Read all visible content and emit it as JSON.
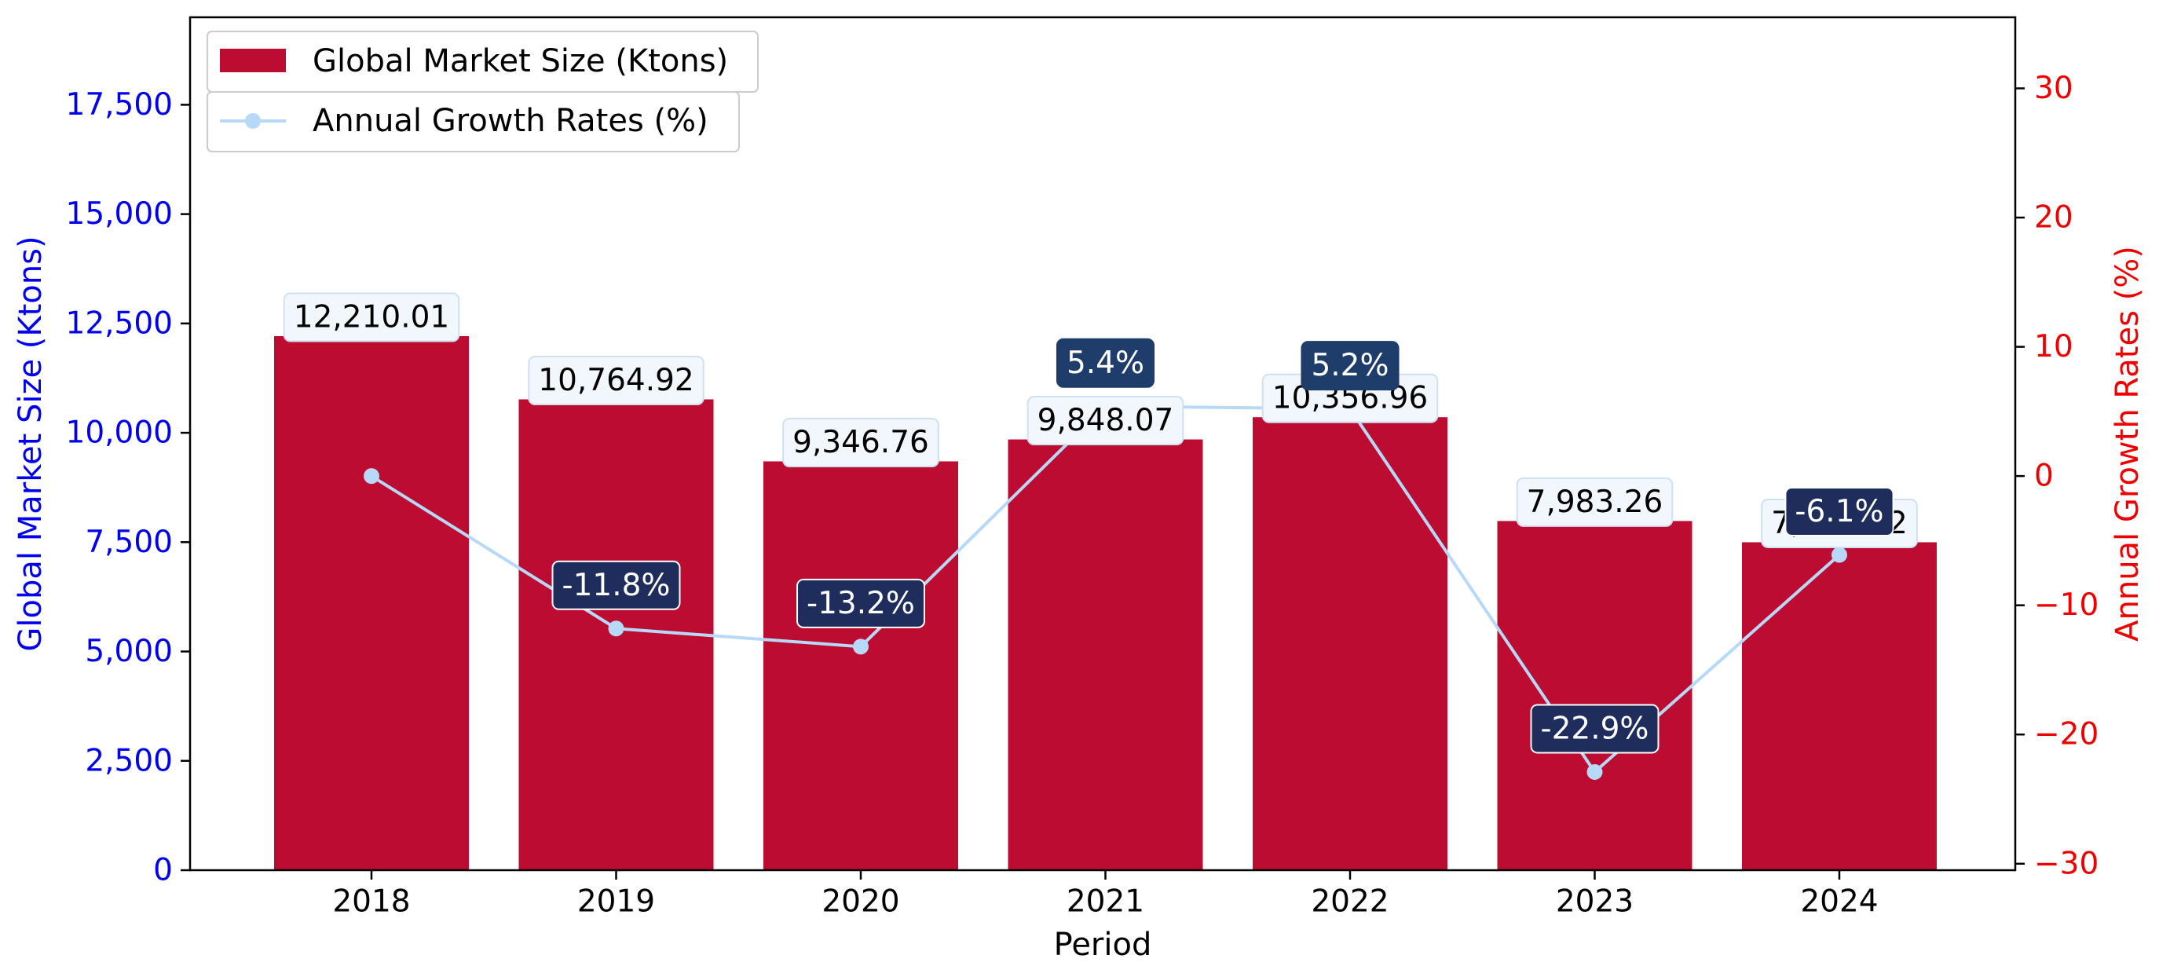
{
  "chart_data": {
    "type": "bar",
    "xlabel": "Period",
    "ylabel_left": "Global Market Size (Ktons)",
    "ylabel_right": "Annual Growth Rates (%)",
    "categories": [
      "2018",
      "2019",
      "2020",
      "2021",
      "2022",
      "2023",
      "2024"
    ],
    "series": [
      {
        "name": "Global Market Size (Ktons)",
        "type": "bar",
        "axis": "left",
        "values": [
          12210.01,
          10764.92,
          9346.76,
          9848.07,
          10356.96,
          7983.26,
          7497.52
        ],
        "labels": [
          "12,210.01",
          "10,764.92",
          "9,346.76",
          "9,848.07",
          "10,356.96",
          "7,983.26",
          "7,497.52"
        ],
        "color": "#bd0c31"
      },
      {
        "name": "Annual Growth Rates (%)",
        "type": "line",
        "axis": "right",
        "values": [
          0,
          -11.8,
          -13.2,
          5.4,
          5.2,
          -22.9,
          -6.1
        ],
        "labels": [
          "",
          "-11.8%",
          "-13.2%",
          "5.4%",
          "5.2%",
          "-22.9%",
          "-6.1%"
        ],
        "color": "#b8d8f8"
      }
    ],
    "ylim_left": [
      0,
      19500
    ],
    "ylim_right": [
      -30.5,
      35.5
    ],
    "yticks_left": [
      0,
      2500,
      5000,
      7500,
      10000,
      12500,
      15000,
      17500
    ],
    "ytick_labels_left": [
      "0",
      "2,500",
      "5,000",
      "7,500",
      "10,000",
      "12,500",
      "15,000",
      "17,500"
    ],
    "yticks_right": [
      -30,
      -20,
      -10,
      0,
      10,
      20,
      30
    ],
    "ytick_labels_right": [
      "−30",
      "−20",
      "−10",
      "0",
      "10",
      "20",
      "30"
    ],
    "legend_position": "top-left",
    "grid": false,
    "colors": {
      "left_axis": "#0000ee",
      "right_axis": "#ee0000",
      "positive_badge": "#1f3d6b",
      "negative_badge": "#1f2d5c",
      "bar_label_bg": "#f1f7fd"
    }
  }
}
